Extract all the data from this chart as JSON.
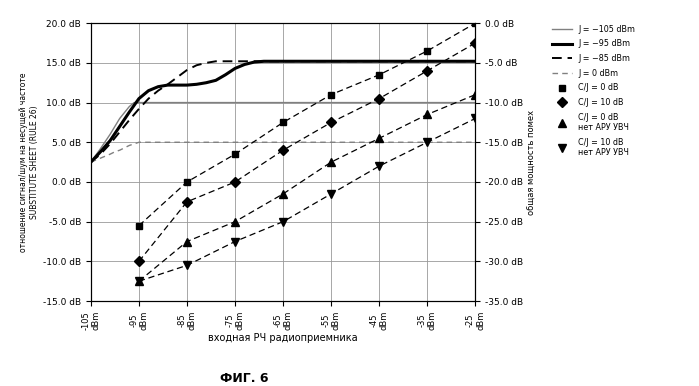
{
  "x_values": [
    -105,
    -95,
    -85,
    -75,
    -65,
    -55,
    -45,
    -35,
    -25
  ],
  "x_labels": [
    "-105\ndBm",
    "-95\ndBm",
    "-85\ndBm",
    "-75\ndBm",
    "-65\ndBm",
    "-55\ndBm",
    "-45\ndBm",
    "-35\ndBm",
    "-25\ndBm"
  ],
  "ylim_left": [
    -15.0,
    20.0
  ],
  "ylim_right": [
    -35.0,
    0.0
  ],
  "yticks_left": [
    -15.0,
    -10.0,
    -5.0,
    0.0,
    5.0,
    10.0,
    15.0,
    20.0
  ],
  "yticks_right": [
    -35.0,
    -30.0,
    -25.0,
    -20.0,
    -15.0,
    -10.0,
    -5.0,
    0.0
  ],
  "ytick_labels_left": [
    "-15.0 dB",
    "-10.0 dB",
    "-5.0 dB",
    "0.0 dB",
    "5.0 dB",
    "10.0 dB",
    "15.0 dB",
    "20.0 dB"
  ],
  "ytick_labels_right": [
    "-35.0 dB",
    "-30.0 dB",
    "-25.0 dB",
    "-20.0 dB",
    "-15.0 dB",
    "-10.0 dB",
    "-5.0 dB",
    "0.0 dB"
  ],
  "ylabel_left_line1": "отношение сигнал/шум на несущей частоте",
  "ylabel_left_line2": "SUBSTITUTE SHEET (RULE 26)",
  "ylabel_right": "общая мощность помех",
  "xlabel": "входная РЧ радиоприемника",
  "title": "ФИГ. 6",
  "J_minus105_x": [
    -105,
    -103,
    -101,
    -99,
    -97,
    -96,
    -95,
    -90,
    -85,
    -80,
    -75,
    -70,
    -65,
    -60,
    -55,
    -50,
    -45,
    -40,
    -35,
    -30,
    -25
  ],
  "J_minus105_y": [
    2.5,
    4.2,
    6.0,
    8.0,
    9.5,
    10.0,
    10.0,
    10.0,
    10.0,
    10.0,
    10.0,
    10.0,
    10.0,
    10.0,
    10.0,
    10.0,
    10.0,
    10.0,
    10.0,
    10.0,
    10.0
  ],
  "J_minus95_x": [
    -105,
    -103,
    -101,
    -99,
    -97,
    -95,
    -93,
    -91,
    -89,
    -87,
    -85,
    -83,
    -81,
    -79,
    -77,
    -75,
    -73,
    -71,
    -69,
    -67,
    -65,
    -63,
    -61,
    -59,
    -57,
    -55,
    -50,
    -45,
    -40,
    -35,
    -30,
    -25
  ],
  "J_minus95_y": [
    2.5,
    3.8,
    5.2,
    7.0,
    8.8,
    10.5,
    11.5,
    12.0,
    12.2,
    12.2,
    12.2,
    12.3,
    12.5,
    12.8,
    13.5,
    14.3,
    14.8,
    15.1,
    15.2,
    15.2,
    15.2,
    15.2,
    15.2,
    15.2,
    15.2,
    15.2,
    15.2,
    15.2,
    15.2,
    15.2,
    15.2,
    15.2
  ],
  "J_minus85_x": [
    -105,
    -103,
    -101,
    -99,
    -97,
    -95,
    -93,
    -91,
    -89,
    -87,
    -85,
    -83,
    -81,
    -79,
    -77,
    -75,
    -73,
    -71,
    -69,
    -67,
    -65,
    -60,
    -55,
    -50,
    -45,
    -40,
    -35,
    -30,
    -25
  ],
  "J_minus85_y": [
    2.5,
    3.5,
    4.8,
    6.3,
    7.8,
    9.2,
    10.5,
    11.5,
    12.3,
    13.2,
    14.1,
    14.7,
    15.0,
    15.2,
    15.2,
    15.2,
    15.2,
    15.2,
    15.2,
    15.2,
    15.2,
    15.2,
    15.2,
    15.2,
    15.2,
    15.2,
    15.2,
    15.2,
    15.2
  ],
  "J_0_x": [
    -105,
    -103,
    -101,
    -100,
    -99,
    -98,
    -97,
    -96,
    -95,
    -93,
    -91,
    -89,
    -87,
    -85,
    -80,
    -75,
    -70,
    -65,
    -60,
    -55,
    -50,
    -45,
    -40,
    -35,
    -30,
    -25
  ],
  "J_0_y": [
    2.5,
    3.0,
    3.5,
    3.8,
    4.0,
    4.3,
    4.6,
    4.8,
    5.0,
    5.0,
    5.0,
    5.0,
    5.0,
    5.0,
    5.0,
    5.0,
    5.0,
    5.0,
    5.0,
    5.0,
    5.0,
    5.0,
    5.0,
    5.0,
    5.0,
    5.0
  ],
  "CJ0_sq_x": [
    -95,
    -85,
    -75,
    -65,
    -55,
    -45,
    -35,
    -25
  ],
  "CJ0_sq_y": [
    -5.5,
    0.0,
    3.5,
    7.5,
    11.0,
    13.5,
    16.5,
    20.0
  ],
  "CJ10_dia_x": [
    -95,
    -85,
    -75,
    -65,
    -55,
    -45,
    -35,
    -25
  ],
  "CJ10_dia_y": [
    -10.0,
    -2.5,
    0.0,
    4.0,
    7.5,
    10.5,
    14.0,
    17.5
  ],
  "CJ0_tri_x": [
    -95,
    -85,
    -75,
    -65,
    -55,
    -45,
    -35,
    -25
  ],
  "CJ0_tri_y": [
    -12.5,
    -7.5,
    -5.0,
    -1.5,
    2.5,
    5.5,
    8.5,
    11.0
  ],
  "CJ10_tri_x": [
    -95,
    -85,
    -75,
    -65,
    -55,
    -45,
    -35,
    -25
  ],
  "CJ10_tri_y": [
    -12.5,
    -10.5,
    -7.5,
    -5.0,
    -1.5,
    2.0,
    5.0,
    8.0
  ],
  "background_color": "#ffffff",
  "grid_color": "#999999"
}
